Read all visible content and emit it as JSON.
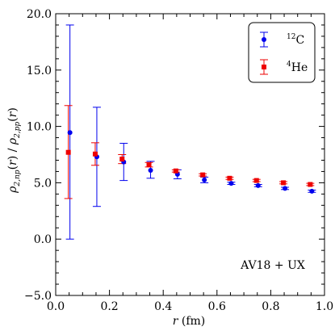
{
  "chart_data": {
    "type": "scatter",
    "xlabel": "r (fm)",
    "ylabel": "ρ2,np(r) / ρ2,pp(r)",
    "xlim": [
      0.0,
      1.0
    ],
    "ylim": [
      -5.0,
      20.0
    ],
    "xticks": [
      0.0,
      0.2,
      0.4,
      0.6,
      0.8,
      1.0
    ],
    "yticks": [
      -5.0,
      0.0,
      5.0,
      10.0,
      15.0,
      20.0
    ],
    "xtick_labels": [
      "0.0",
      "0.2",
      "0.4",
      "0.6",
      "0.8",
      "1.0"
    ],
    "ytick_labels": [
      "−5.0",
      "0.0",
      "5.0",
      "10.0",
      "15.0",
      "20.0"
    ],
    "grid": false,
    "legend_position": "top-right",
    "annotation": "AV18 + UX",
    "series": [
      {
        "name": "12C",
        "name_sup": "12",
        "name_base": "C",
        "color": "#0000ee",
        "marker": "circle",
        "points": [
          {
            "x": 0.05,
            "y": 9.45,
            "ylo": 0.0,
            "yhi": 19.0
          },
          {
            "x": 0.15,
            "y": 7.3,
            "ylo": 2.9,
            "yhi": 11.7
          },
          {
            "x": 0.25,
            "y": 6.85,
            "ylo": 5.2,
            "yhi": 8.5
          },
          {
            "x": 0.35,
            "y": 6.1,
            "ylo": 5.4,
            "yhi": 6.9
          },
          {
            "x": 0.45,
            "y": 5.75,
            "ylo": 5.35,
            "yhi": 6.15
          },
          {
            "x": 0.55,
            "y": 5.25,
            "ylo": 5.0,
            "yhi": 5.5
          },
          {
            "x": 0.65,
            "y": 4.95,
            "ylo": 4.85,
            "yhi": 5.05
          },
          {
            "x": 0.75,
            "y": 4.75,
            "ylo": 4.65,
            "yhi": 4.85
          },
          {
            "x": 0.85,
            "y": 4.5,
            "ylo": 4.4,
            "yhi": 4.6
          },
          {
            "x": 0.95,
            "y": 4.25,
            "ylo": 4.15,
            "yhi": 4.35
          }
        ]
      },
      {
        "name": "4He",
        "name_sup": "4",
        "name_base": "He",
        "color": "#ee0000",
        "marker": "square",
        "points": [
          {
            "x": 0.05,
            "y": 7.7,
            "ylo": 3.6,
            "yhi": 11.85
          },
          {
            "x": 0.15,
            "y": 7.55,
            "ylo": 6.55,
            "yhi": 8.55
          },
          {
            "x": 0.25,
            "y": 7.1,
            "ylo": 6.7,
            "yhi": 7.5
          },
          {
            "x": 0.35,
            "y": 6.6,
            "ylo": 6.4,
            "yhi": 6.8
          },
          {
            "x": 0.45,
            "y": 6.05,
            "ylo": 5.95,
            "yhi": 6.15
          },
          {
            "x": 0.55,
            "y": 5.7,
            "ylo": 5.6,
            "yhi": 5.8
          },
          {
            "x": 0.65,
            "y": 5.4,
            "ylo": 5.3,
            "yhi": 5.5
          },
          {
            "x": 0.75,
            "y": 5.2,
            "ylo": 5.1,
            "yhi": 5.3
          },
          {
            "x": 0.85,
            "y": 5.0,
            "ylo": 4.9,
            "yhi": 5.1
          },
          {
            "x": 0.95,
            "y": 4.85,
            "ylo": 4.75,
            "yhi": 4.95
          }
        ]
      }
    ]
  }
}
